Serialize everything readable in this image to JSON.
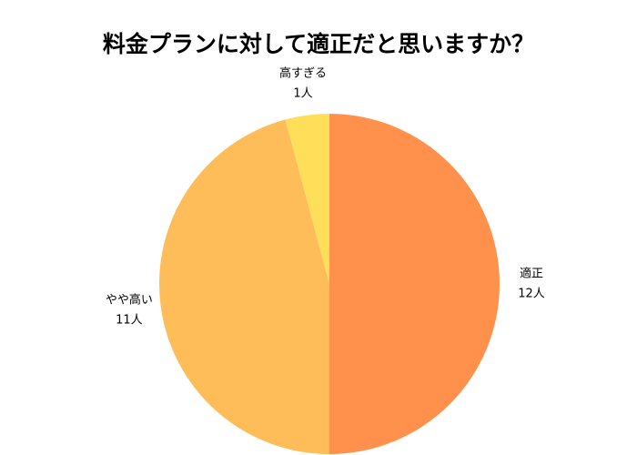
{
  "chart_data": {
    "type": "pie",
    "title": "料金プランに対して適正だと思いますか？",
    "categories": [
      "適正",
      "やや高い",
      "高すぎる"
    ],
    "values": [
      12,
      11,
      1
    ],
    "value_labels": [
      "12人",
      "11人",
      "1人"
    ],
    "colors": [
      "#FF914D",
      "#FFBD59",
      "#FFDE59"
    ]
  }
}
